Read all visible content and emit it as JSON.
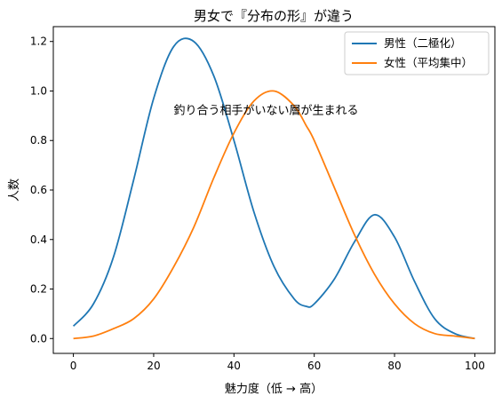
{
  "chart_data": {
    "type": "line",
    "title": "男女で『分布の形』が違う",
    "xlabel": "魅力度（低 → 高）",
    "ylabel": "人数",
    "xlim": [
      -5,
      105
    ],
    "ylim": [
      -0.06,
      1.26
    ],
    "xticks": [
      0,
      20,
      40,
      60,
      80,
      100
    ],
    "yticks": [
      0.0,
      0.2,
      0.4,
      0.6,
      0.8,
      1.0,
      1.2
    ],
    "xtick_labels": [
      "0",
      "20",
      "40",
      "60",
      "80",
      "100"
    ],
    "ytick_labels": [
      "0.0",
      "0.2",
      "0.4",
      "0.6",
      "0.8",
      "1.0",
      "1.2"
    ],
    "grid": false,
    "legend_position": "top-right",
    "annotation": {
      "text": "釣り合う相手がいない層が生まれる",
      "x": 25,
      "y": 0.9
    },
    "x": [
      0,
      5,
      10,
      15,
      20,
      25,
      30,
      35,
      40,
      45,
      50,
      55,
      58,
      60,
      65,
      70,
      75,
      80,
      85,
      90,
      95,
      100
    ],
    "series": [
      {
        "name": "男性（二極化）",
        "color": "#1f77b4",
        "values": [
          0.05,
          0.14,
          0.33,
          0.64,
          0.97,
          1.18,
          1.2,
          1.06,
          0.8,
          0.51,
          0.29,
          0.16,
          0.13,
          0.14,
          0.24,
          0.39,
          0.5,
          0.41,
          0.23,
          0.08,
          0.02,
          0.0
        ]
      },
      {
        "name": "女性（平均集中）",
        "color": "#ff7f0e",
        "values": [
          0.0,
          0.01,
          0.04,
          0.08,
          0.16,
          0.29,
          0.45,
          0.65,
          0.83,
          0.96,
          1.0,
          0.94,
          0.86,
          0.8,
          0.61,
          0.42,
          0.26,
          0.14,
          0.06,
          0.02,
          0.01,
          0.0
        ]
      }
    ]
  }
}
